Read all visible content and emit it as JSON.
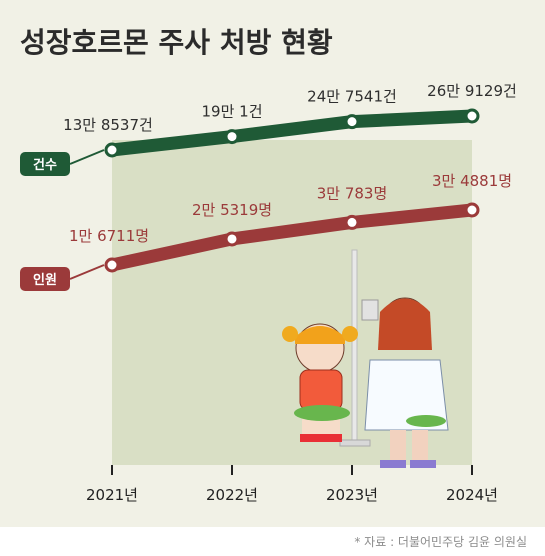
{
  "title": "성장호르몬 주사 처방 현황",
  "source": "* 자료 : 더불어민주당 김윤 의원실",
  "colors": {
    "background": "#f1f1e6",
    "title": "#2b2b2b",
    "cases": "#1f5a36",
    "cases_label": "#2f2f2f",
    "people": "#9b3a3a",
    "people_label": "#9b3a3a",
    "panel": "#d9dfc5",
    "footer": "#ffffff"
  },
  "chart_data": {
    "type": "line",
    "x": [
      "2021년",
      "2022년",
      "2023년",
      "2024년"
    ],
    "series": [
      {
        "name": "건수",
        "values": [
          138537,
          190001,
          247541,
          269129
        ],
        "labels": [
          "13만 8537건",
          "19만 1건",
          "24만 7541건",
          "26만 9129건"
        ]
      },
      {
        "name": "인원",
        "values": [
          16711,
          25319,
          30783,
          34881
        ],
        "labels": [
          "1만 6711명",
          "2만 5319명",
          "3만 783명",
          "3만 4881명"
        ]
      }
    ]
  }
}
